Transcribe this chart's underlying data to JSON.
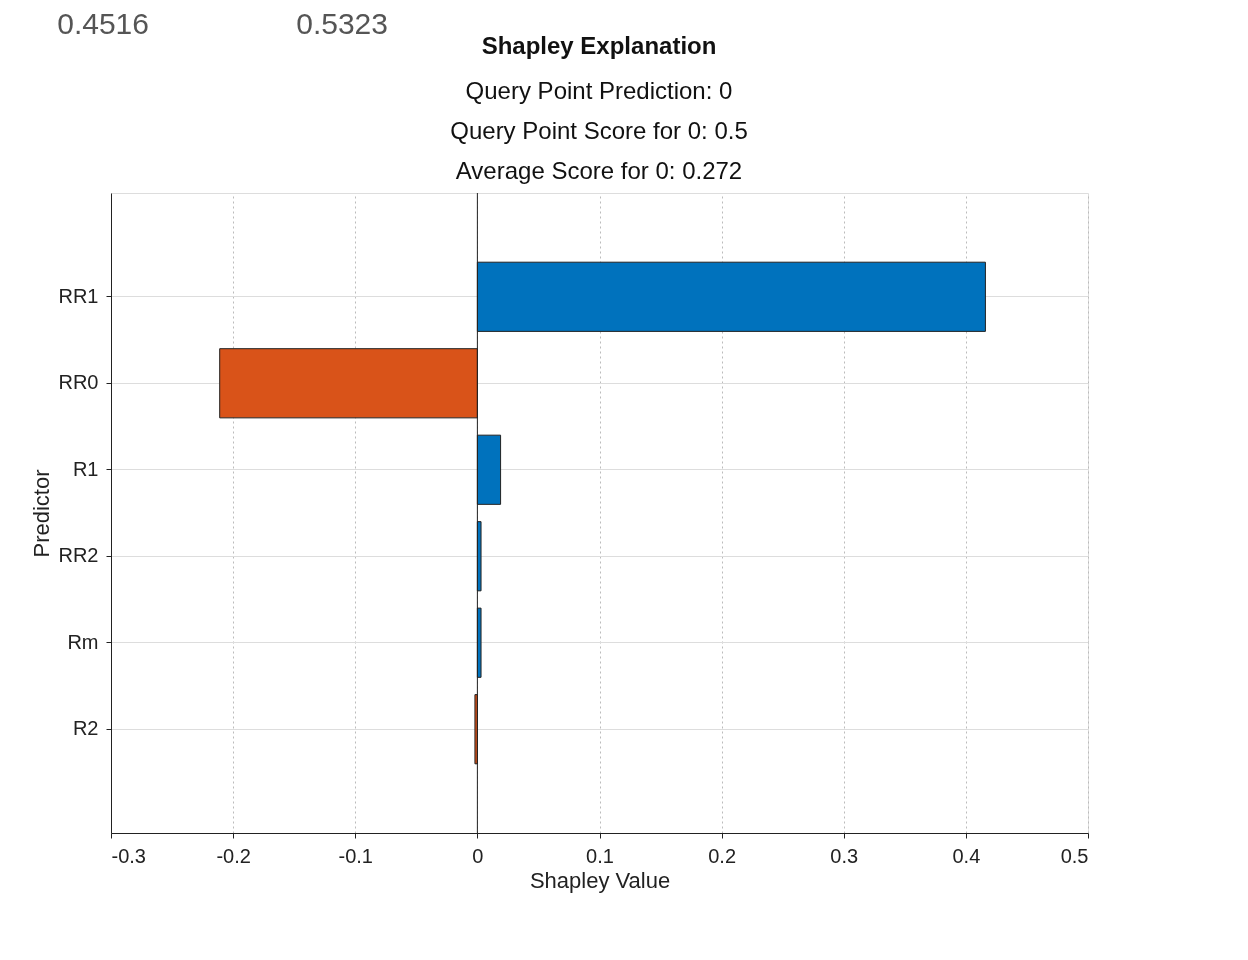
{
  "chart_data": {
    "type": "bar",
    "orientation": "horizontal",
    "title": "Shapley Explanation",
    "subtitle": "Query Point Prediction: 0\nQuery Point Score for 0: 0.5\nAverage Score for 0: 0.272",
    "xlabel": "Shapley Value",
    "ylabel": "Predictor",
    "categories": [
      "RR1",
      "RR0",
      "R1",
      "RR2",
      "Rm",
      "R2"
    ],
    "values": [
      0.416,
      -0.211,
      0.019,
      0.003,
      0.003,
      -0.002
    ],
    "colors": [
      "#0072bd",
      "#d95319",
      "#0072bd",
      "#0072bd",
      "#0072bd",
      "#d95319"
    ],
    "xlim": [
      -0.3,
      0.5
    ],
    "xticks": [
      -0.3,
      -0.2,
      -0.1,
      0,
      0.1,
      0.2,
      0.3,
      0.4,
      0.5
    ],
    "grid": true,
    "annotations": [
      "0.4516",
      "0.5323"
    ]
  }
}
